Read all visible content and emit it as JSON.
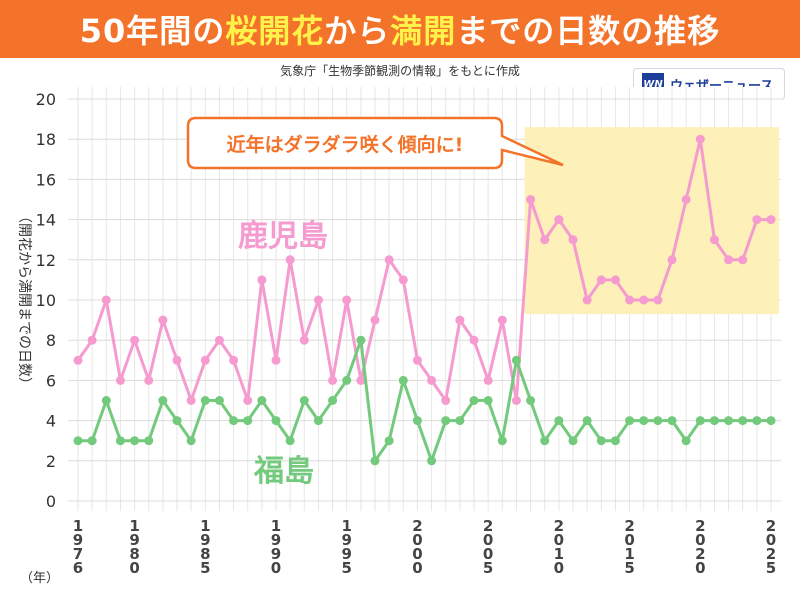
{
  "header": {
    "title_part1": "50年間の",
    "title_hl1": "桜開花",
    "title_part2": "から",
    "title_hl2": "満開",
    "title_part3": "までの日数の推移"
  },
  "source_note": "気象庁「生物季節観測の情報」をもとに作成",
  "logo": {
    "mark": "WN",
    "text": "ウェザーニュース"
  },
  "callout": "近年はダラダラ咲く傾向に!",
  "colors": {
    "header_bg": "#f4732a",
    "title_highlight": "#fff24a",
    "kagoshima": "#f59bd0",
    "fukushima": "#73c97c",
    "highlight_box": "#fdf0b8",
    "callout_border": "#f4732a"
  },
  "chart_data": {
    "type": "line",
    "ylabel": "（開花から満開までの日数）",
    "xlabel": "（年）",
    "ylim": [
      0,
      20
    ],
    "yticks": [
      0,
      2,
      4,
      6,
      8,
      10,
      12,
      14,
      16,
      18,
      20
    ],
    "xlim": [
      1976,
      2025
    ],
    "xticks": [
      {
        "year": 1976,
        "label": "1976"
      },
      {
        "year": 1980,
        "label": "1980"
      },
      {
        "year": 1985,
        "label": "1985"
      },
      {
        "year": 1990,
        "label": "1990"
      },
      {
        "year": 1995,
        "label": "1995"
      },
      {
        "year": 2000,
        "label": "2000"
      },
      {
        "year": 2005,
        "label": "2005"
      },
      {
        "year": 2010,
        "label": "2010"
      },
      {
        "year": 2015,
        "label": "2015"
      },
      {
        "year": 2020,
        "label": "2020"
      },
      {
        "year": 2025,
        "label": "2025"
      }
    ],
    "grid": true,
    "x": [
      1976,
      1977,
      1978,
      1979,
      1980,
      1981,
      1982,
      1983,
      1984,
      1985,
      1986,
      1987,
      1988,
      1989,
      1990,
      1991,
      1992,
      1993,
      1994,
      1995,
      1996,
      1997,
      1998,
      1999,
      2000,
      2001,
      2002,
      2003,
      2004,
      2005,
      2006,
      2007,
      2008,
      2009,
      2010,
      2011,
      2012,
      2013,
      2014,
      2015,
      2016,
      2017,
      2018,
      2019,
      2020,
      2021,
      2022,
      2023,
      2024,
      2025
    ],
    "series": [
      {
        "name": "鹿児島",
        "color": "#f59bd0",
        "values": [
          7,
          8,
          10,
          6,
          8,
          6,
          9,
          7,
          5,
          7,
          8,
          7,
          5,
          11,
          7,
          12,
          8,
          10,
          6,
          10,
          6,
          9,
          12,
          11,
          7,
          6,
          5,
          9,
          8,
          6,
          9,
          5,
          15,
          13,
          14,
          13,
          10,
          11,
          11,
          10,
          10,
          10,
          12,
          15,
          18,
          13,
          12,
          12,
          14,
          14
        ]
      },
      {
        "name": "福島",
        "color": "#73c97c",
        "values": [
          3,
          3,
          5,
          3,
          3,
          3,
          5,
          4,
          3,
          5,
          5,
          4,
          4,
          5,
          4,
          3,
          5,
          4,
          5,
          6,
          8,
          2,
          3,
          6,
          4,
          2,
          4,
          4,
          5,
          5,
          3,
          7,
          5,
          3,
          4,
          3,
          4,
          3,
          3,
          4,
          4,
          4,
          4,
          3,
          4,
          4,
          4,
          4,
          4,
          4
        ]
      }
    ],
    "highlight_range": {
      "x": [
        2008,
        2025
      ],
      "y": [
        9.3,
        18.6
      ]
    }
  }
}
